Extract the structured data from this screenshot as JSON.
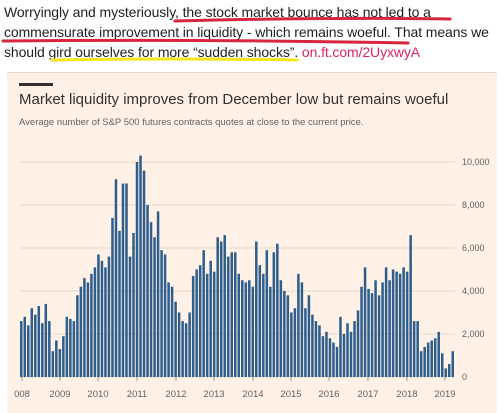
{
  "tweet": {
    "text": "Worryingly and mysteriously, the stock market bounce has not led to a commensurate improvement in liquidity - which remains woeful. That means we should gird ourselves for more “sudden shocks”. ",
    "link": "on.ft.com/2UyxwyA"
  },
  "colors": {
    "bar": "#2d5e8d",
    "card_bg": "#fff1e5",
    "underline_red": "#d7263d",
    "underline_yellow": "#f7e51b",
    "grid": "#e3d7cb"
  },
  "chart_data": {
    "type": "bar",
    "title": "Market liquidity improves from December low but remains woeful",
    "subtitle": "Average number of S&P 500 futures contracts quotes at close to the current price.",
    "xlabel": "",
    "ylabel": "",
    "ylim": [
      0,
      10500
    ],
    "yticks": [
      "0",
      "2,000",
      "4,000",
      "6,000",
      "8,000",
      "10,000"
    ],
    "ytick_values": [
      0,
      2000,
      4000,
      6000,
      8000,
      10000
    ],
    "xticks": [
      "008",
      "2009",
      "2010",
      "2011",
      "2012",
      "2013",
      "2014",
      "2015",
      "2016",
      "2017",
      "2018",
      "2019"
    ],
    "grid": true,
    "values": [
      2600,
      2800,
      2400,
      3200,
      2900,
      3300,
      2500,
      3400,
      2600,
      1200,
      1700,
      1300,
      1900,
      2800,
      2700,
      2600,
      3800,
      4200,
      4600,
      4400,
      4800,
      5100,
      5700,
      5400,
      5100,
      5600,
      7400,
      9200,
      6800,
      9000,
      9000,
      5600,
      6700,
      10000,
      10300,
      9600,
      8000,
      7200,
      6500,
      7700,
      5900,
      5700,
      4400,
      4200,
      3500,
      3000,
      2600,
      2500,
      3000,
      4700,
      5000,
      5200,
      5900,
      4800,
      5400,
      4900,
      6500,
      6300,
      6600,
      5600,
      5800,
      5800,
      4800,
      4500,
      4400,
      4500,
      4200,
      6300,
      5200,
      4800,
      5900,
      4200,
      5800,
      6200,
      4500,
      4000,
      3800,
      3000,
      3200,
      4800,
      4400,
      3200,
      3800,
      2900,
      2600,
      2400,
      1900,
      2100,
      1800,
      1600,
      1400,
      2800,
      2000,
      2500,
      2100,
      2600,
      3100,
      4200,
      5100,
      4100,
      3900,
      4500,
      3800,
      4400,
      5100,
      4500,
      5000,
      4900,
      4800,
      5100,
      4900,
      6600,
      2600,
      2600,
      1200,
      1400,
      1600,
      1700,
      1800,
      2100,
      1100,
      400,
      600,
      1200
    ]
  }
}
